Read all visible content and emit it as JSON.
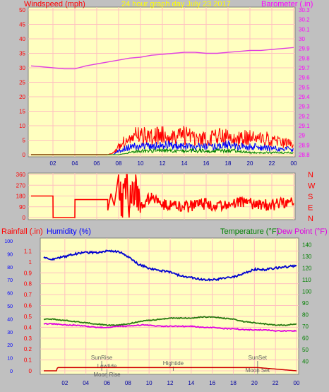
{
  "header": {
    "left_title": "Windspeed (mph)",
    "center_title": "24 hour graph day   July 23 2017",
    "right_title": "Barometer (.in)"
  },
  "middle_labels": {
    "compass": [
      "N",
      "W",
      "S",
      "E",
      "N"
    ]
  },
  "bottom_header": {
    "rain_label": "Rainfall (.in)",
    "humidity_label": "Humidity (%)",
    "temp_label": "Temperature (°F)",
    "dew_label": "Dew Point (°F)"
  },
  "colors": {
    "panel_bg": "#ffffc0",
    "window_bg": "#c0c0c0",
    "grid": "#ffc0c0",
    "barometer": "#e040e0",
    "wind_gust": "#ff0000",
    "wind_avg": "#0000ff",
    "wind_low": "#008000",
    "direction": "#ff0000",
    "humidity": "#0000d0",
    "temperature": "#2a7a12",
    "dewpoint": "#e000e0",
    "rain": "#d00000",
    "title_red": "#ff0000",
    "title_yellow": "#ffff00",
    "title_blue": "#0000ff",
    "title_green": "#008000",
    "title_magenta": "#e000e0"
  },
  "chart_data": [
    {
      "type": "line",
      "panel": "wind-barometer",
      "x_ticks": [
        "02",
        "04",
        "06",
        "08",
        "10",
        "12",
        "14",
        "16",
        "18",
        "20",
        "22",
        "00"
      ],
      "y_left": {
        "label": "Windspeed (mph)",
        "ylim": [
          0,
          50
        ],
        "ticks": [
          "0",
          "5",
          "10",
          "15",
          "20",
          "25",
          "30",
          "35",
          "40",
          "45",
          "50"
        ]
      },
      "y_right": {
        "label": "Barometer (.in)",
        "ylim": [
          28.8,
          30.3
        ],
        "ticks": [
          "28.8",
          "28.9",
          "29",
          "29.1",
          "29.2",
          "29.3",
          "29.4",
          "29.5",
          "29.6",
          "29.7",
          "29.8",
          "29.9",
          "30",
          "30.1",
          "30.2",
          "30.3"
        ]
      },
      "grid": true,
      "series": [
        {
          "name": "Barometer (.in)",
          "axis": "right",
          "x": [
            0,
            1,
            2,
            3,
            4,
            5,
            6,
            7,
            8,
            9,
            10,
            11,
            12,
            13,
            14,
            15,
            16,
            17,
            18,
            19,
            20,
            21,
            22,
            23,
            24
          ],
          "values": [
            29.72,
            29.71,
            29.7,
            29.69,
            29.69,
            29.72,
            29.74,
            29.76,
            29.78,
            29.8,
            29.81,
            29.83,
            29.84,
            29.85,
            29.86,
            29.86,
            29.85,
            29.85,
            29.86,
            29.87,
            29.88,
            29.88,
            29.89,
            29.9,
            29.91
          ]
        },
        {
          "name": "Wind gust (mph)",
          "axis": "left",
          "x": [
            0,
            7.0,
            7.5,
            8,
            9,
            10,
            11,
            12,
            13,
            14,
            15,
            16,
            17,
            18,
            19,
            20,
            21,
            22,
            23,
            24
          ],
          "values": [
            0,
            0,
            1,
            4,
            9,
            10,
            9,
            10,
            9,
            10,
            9,
            8,
            9,
            10,
            8,
            9,
            8,
            8,
            6,
            6
          ]
        },
        {
          "name": "Wind average (mph)",
          "axis": "left",
          "x": [
            0,
            7.5,
            8,
            9,
            10,
            11,
            12,
            13,
            14,
            15,
            16,
            17,
            18,
            19,
            20,
            21,
            22,
            23,
            24
          ],
          "values": [
            0,
            0,
            2,
            4,
            5,
            4,
            5,
            5,
            4,
            4,
            4,
            4,
            5,
            4,
            4,
            4,
            3,
            3,
            3
          ]
        },
        {
          "name": "Wind low (mph)",
          "axis": "left",
          "x": [
            0,
            8,
            9,
            10,
            11,
            12,
            13,
            14,
            15,
            16,
            17,
            18,
            19,
            20,
            21,
            22,
            23,
            24
          ],
          "values": [
            0,
            0,
            1,
            2,
            2,
            2,
            2,
            2,
            2,
            2,
            2,
            2,
            2,
            1,
            1,
            1,
            1,
            1
          ]
        }
      ]
    },
    {
      "type": "line",
      "panel": "wind-direction",
      "x_ticks": [
        "02",
        "04",
        "06",
        "08",
        "10",
        "12",
        "14",
        "16",
        "18",
        "20",
        "22",
        "00"
      ],
      "y_left": {
        "ylim": [
          0,
          360
        ],
        "ticks": [
          "0",
          "90",
          "180",
          "270",
          "360"
        ]
      },
      "y_right": {
        "ticks": [
          "N",
          "W",
          "S",
          "E",
          "N"
        ]
      },
      "grid": true,
      "series": [
        {
          "name": "Wind direction (deg)",
          "axis": "left",
          "x": [
            0,
            2,
            2.01,
            4,
            4.01,
            7.0,
            7.01,
            7.3,
            7.6,
            8,
            8.3,
            8.6,
            9,
            9.5,
            10,
            11,
            12,
            13,
            14,
            15,
            16,
            17,
            18,
            19,
            20,
            21,
            22,
            23,
            24
          ],
          "values": [
            180,
            180,
            0,
            0,
            150,
            150,
            60,
            200,
            100,
            360,
            60,
            330,
            100,
            300,
            80,
            180,
            110,
            100,
            90,
            100,
            120,
            90,
            110,
            130,
            120,
            110,
            100,
            120,
            120
          ]
        }
      ]
    },
    {
      "type": "line",
      "panel": "humidity-temperature-rain",
      "x_ticks": [
        "02",
        "04",
        "06",
        "08",
        "10",
        "12",
        "14",
        "16",
        "18",
        "20",
        "22",
        "00"
      ],
      "y_left_rain": {
        "label": "Rainfall (.in)",
        "ylim": [
          0,
          1.2
        ],
        "ticks": [
          "0",
          "0.1",
          "0.2",
          "0.3",
          "0.4",
          "0.5",
          "0.6",
          "0.7",
          "0.8",
          "0.9",
          "1",
          "1.1"
        ]
      },
      "y_left_humidity": {
        "label": "Humidity (%)",
        "ylim": [
          0,
          100
        ],
        "ticks": [
          "0",
          "10",
          "20",
          "30",
          "40",
          "50",
          "60",
          "70",
          "80",
          "90",
          "100"
        ]
      },
      "y_right": {
        "label": "Temperature (°F)",
        "ylim": [
          30,
          145
        ],
        "ticks": [
          "40",
          "50",
          "60",
          "70",
          "80",
          "90",
          "100",
          "110",
          "120",
          "130",
          "140"
        ]
      },
      "grid": true,
      "annotations": [
        {
          "text": "SunRise",
          "x": 5.5
        },
        {
          "text": "Lowtide",
          "x": 6.0
        },
        {
          "text": "Moon Rise",
          "x": 6.0
        },
        {
          "text": "Hightide",
          "x": 12.3
        },
        {
          "text": "SunSet",
          "x": 20.3
        },
        {
          "text": "Moon Set",
          "x": 20.3
        }
      ],
      "series": [
        {
          "name": "Humidity (%)",
          "axis": "humidity",
          "x": [
            0,
            1,
            2,
            3,
            4,
            5,
            6,
            7,
            8,
            9,
            10,
            11,
            12,
            13,
            14,
            15,
            16,
            17,
            18,
            19,
            20,
            21,
            22,
            23,
            24
          ],
          "values": [
            87,
            86,
            88,
            90,
            91,
            91,
            92,
            92,
            88,
            82,
            79,
            77,
            76,
            73,
            72,
            70,
            70,
            71,
            72,
            75,
            78,
            78,
            79,
            80,
            81
          ]
        },
        {
          "name": "Temperature (°F)",
          "axis": "right",
          "x": [
            0,
            1,
            2,
            3,
            4,
            5,
            6,
            7,
            8,
            9,
            10,
            11,
            12,
            13,
            14,
            15,
            16,
            17,
            18,
            19,
            20,
            21,
            22,
            23,
            24
          ],
          "values": [
            76,
            76,
            75,
            74,
            73,
            72,
            71,
            71,
            72,
            74,
            75,
            76,
            77,
            77,
            77,
            78,
            78,
            77,
            76,
            74,
            73,
            72,
            71,
            71,
            72
          ]
        },
        {
          "name": "Dew Point (°F)",
          "axis": "right",
          "x": [
            0,
            1,
            2,
            3,
            4,
            5,
            6,
            7,
            8,
            9,
            10,
            11,
            12,
            13,
            14,
            15,
            16,
            17,
            18,
            19,
            20,
            21,
            22,
            23,
            24
          ],
          "values": [
            72,
            72,
            71,
            71,
            70,
            69,
            69,
            70,
            70,
            71,
            71,
            70,
            70,
            70,
            70,
            69,
            69,
            68,
            68,
            67,
            67,
            67,
            66,
            66,
            66
          ]
        },
        {
          "name": "Rainfall (.in)",
          "axis": "rain",
          "x": [
            0,
            1.2,
            1.3,
            20.2,
            20.3,
            24
          ],
          "values": [
            0,
            0,
            0.03,
            0.03,
            0.03,
            0
          ]
        }
      ]
    }
  ]
}
